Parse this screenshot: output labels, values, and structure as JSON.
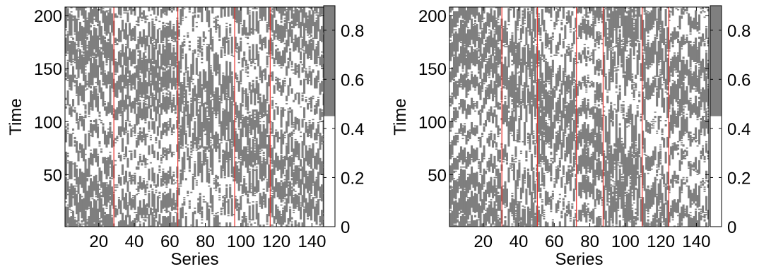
{
  "chart_data": [
    {
      "type": "heatmap",
      "xlabel": "Series",
      "ylabel": "Time",
      "x_ticks": [
        20,
        40,
        60,
        80,
        100,
        120,
        140
      ],
      "y_ticks": [
        50,
        100,
        150,
        200
      ],
      "xlim": [
        1,
        147
      ],
      "ylim": [
        1,
        208
      ],
      "colorbar": {
        "ticks": [
          0,
          0.2,
          0.4,
          0.6,
          0.8
        ],
        "range": [
          0,
          0.9
        ],
        "threshold": 0.45,
        "low_color": "#ffffff",
        "high_color": "#7f7f7f"
      },
      "red_lines_x": [
        28.5,
        64.5,
        96.5,
        116.5
      ],
      "colors": {
        "cell": "#7f7f7f",
        "background": "#ffffff",
        "segment_line": "#e8302a"
      }
    },
    {
      "type": "heatmap",
      "xlabel": "Series",
      "ylabel": "Time",
      "x_ticks": [
        20,
        40,
        60,
        80,
        100,
        120,
        140
      ],
      "y_ticks": [
        50,
        100,
        150,
        200
      ],
      "xlim": [
        1,
        147
      ],
      "ylim": [
        1,
        208
      ],
      "colorbar": {
        "ticks": [
          0,
          0.2,
          0.4,
          0.6,
          0.8
        ],
        "range": [
          0,
          0.9
        ],
        "threshold": 0.45,
        "low_color": "#ffffff",
        "high_color": "#7f7f7f"
      },
      "red_lines_x": [
        30.5,
        50.5,
        72.5,
        87.5,
        109.5,
        124.5
      ],
      "colors": {
        "cell": "#7f7f7f",
        "background": "#ffffff",
        "segment_line": "#e8302a"
      }
    }
  ]
}
